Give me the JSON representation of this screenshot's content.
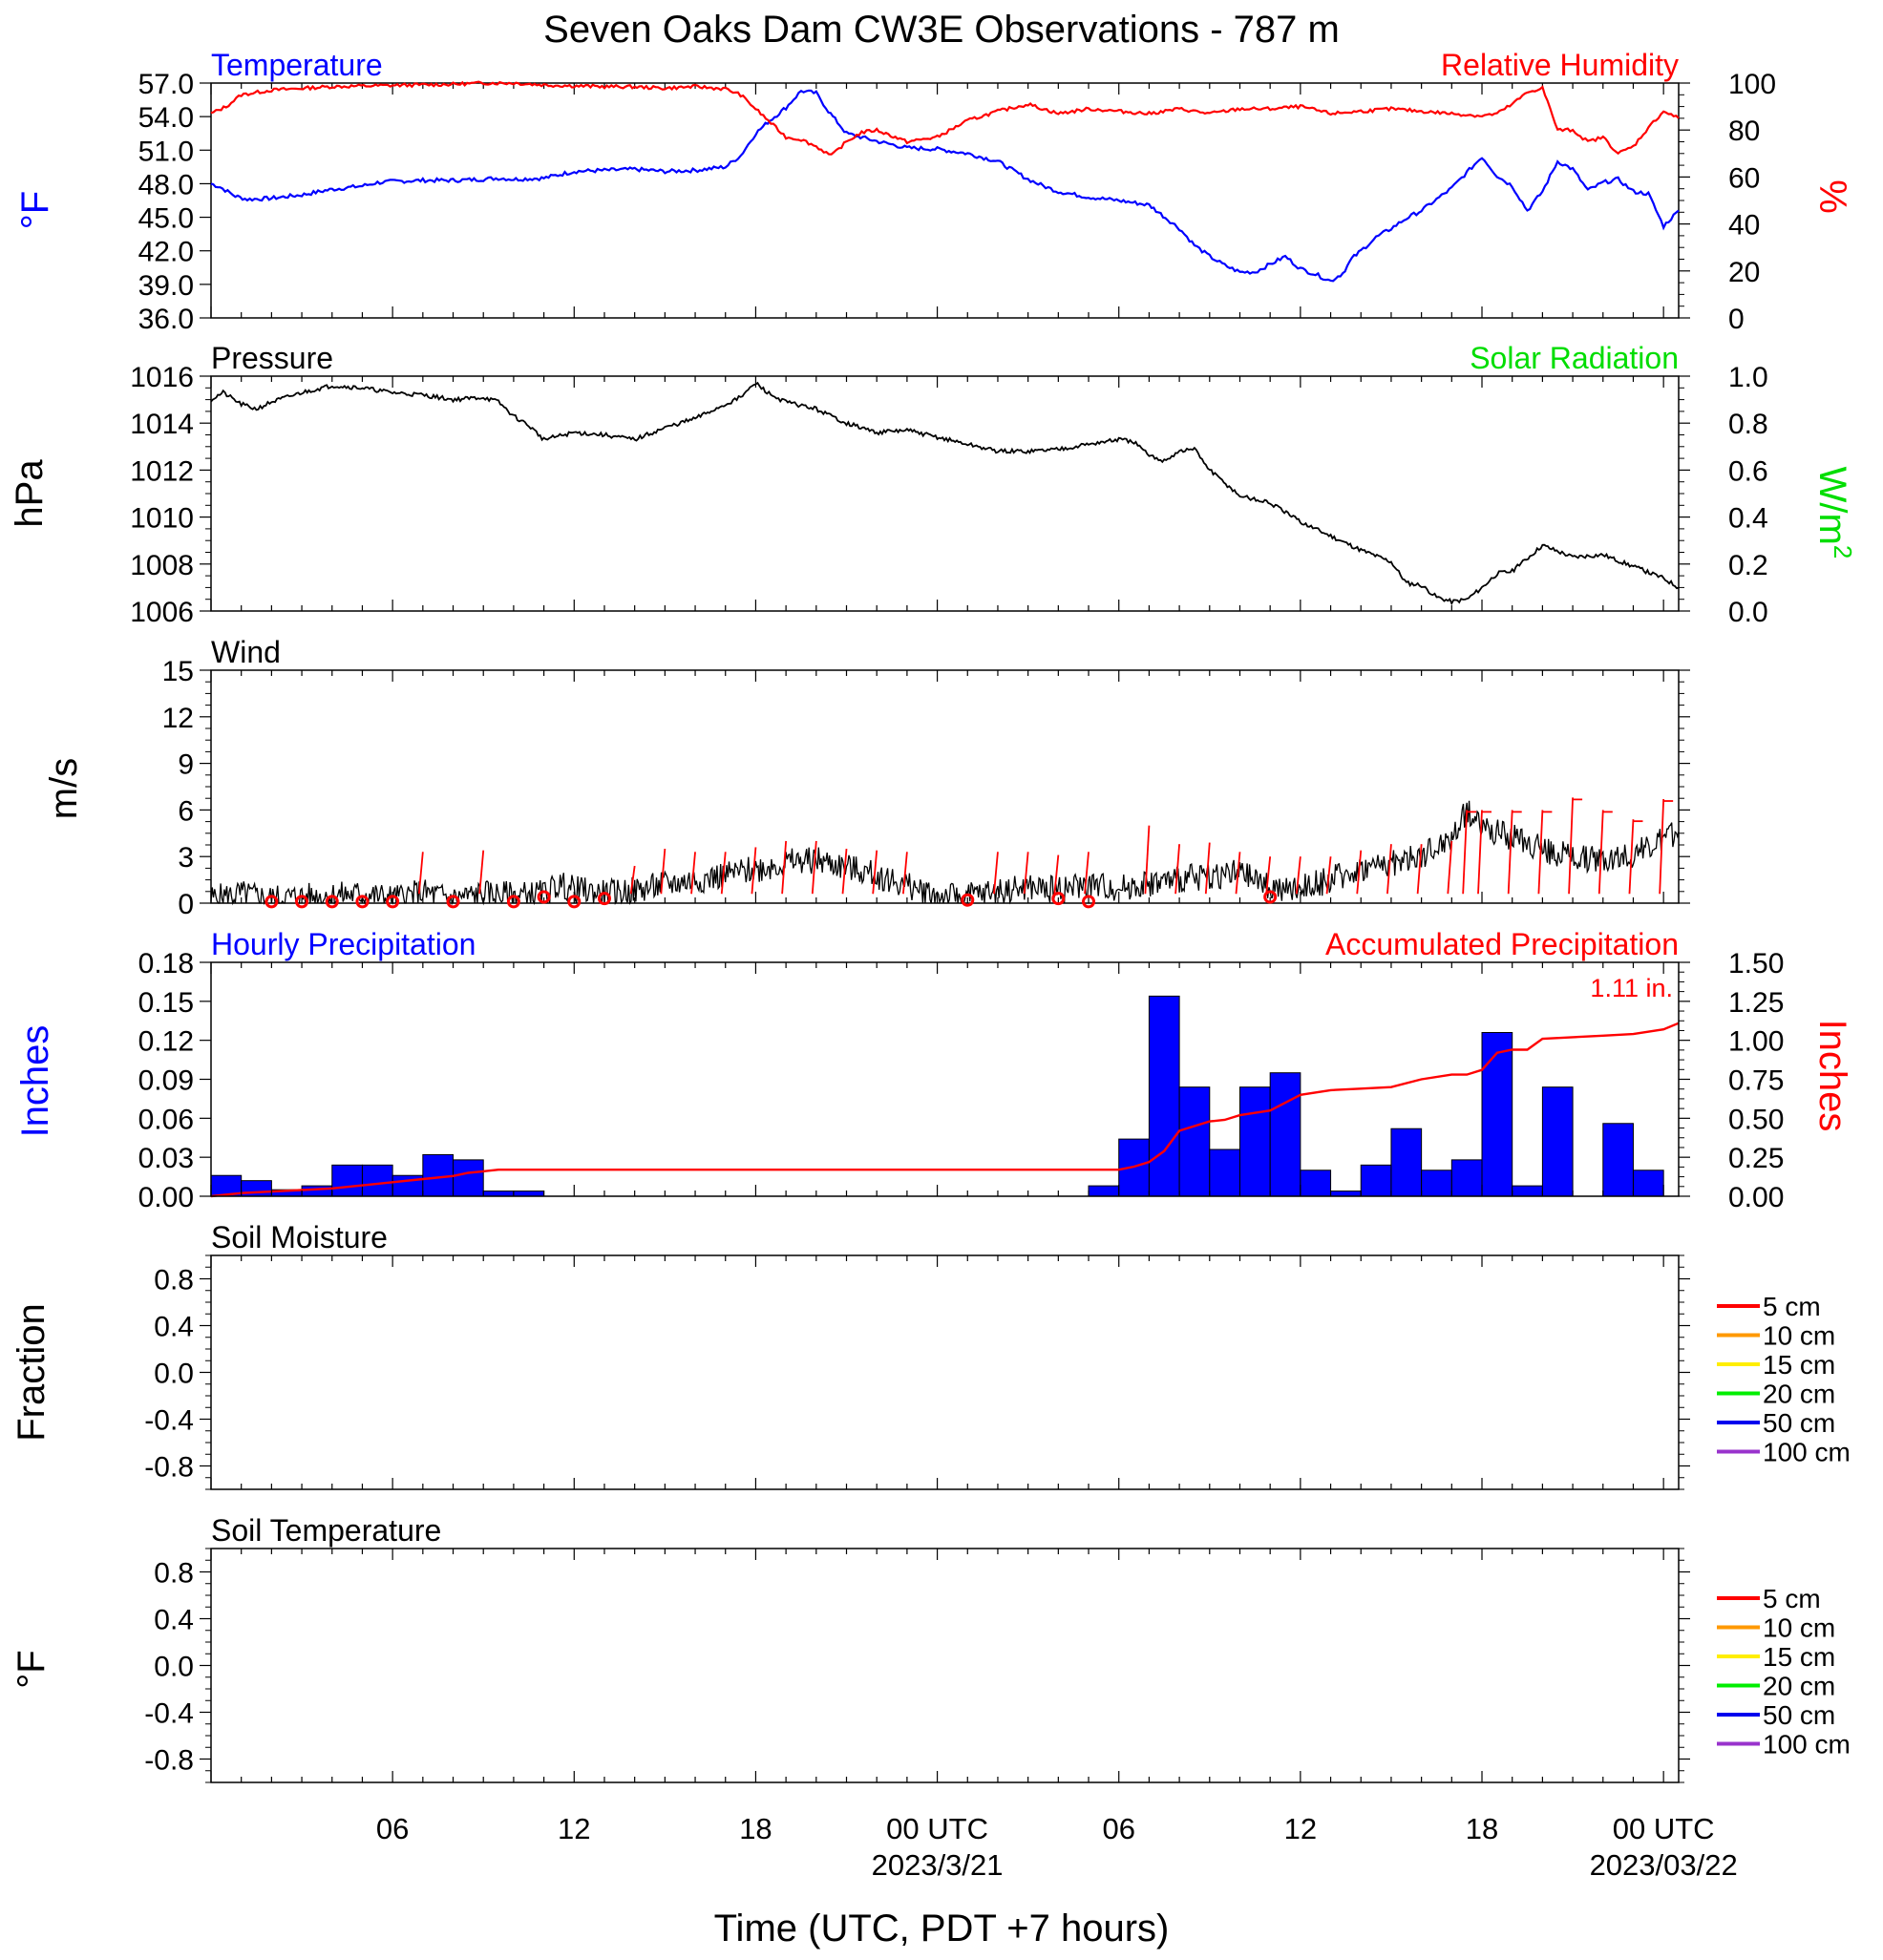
{
  "title": "Seven Oaks Dam CW3E Observations - 787 m",
  "xaxis": {
    "title": "Time (UTC, PDT +7 hours)",
    "ticks": [
      {
        "hour": 6,
        "label": "06"
      },
      {
        "hour": 12,
        "label": "12"
      },
      {
        "hour": 18,
        "label": "18"
      },
      {
        "hour": 24,
        "label": "00 UTC",
        "date": "2023/3/21"
      },
      {
        "hour": 30,
        "label": "06"
      },
      {
        "hour": 36,
        "label": "12"
      },
      {
        "hour": 42,
        "label": "18"
      },
      {
        "hour": 48,
        "label": "00 UTC",
        "date": "2023/03/22"
      }
    ]
  },
  "colors": {
    "temperature": "#0000ff",
    "humidity": "#ff0000",
    "pressure": "#000000",
    "solar": "#00dd00",
    "wind": "#000000",
    "gust": "#ff0000",
    "hourly": "#0000ff",
    "accum": "#ff0000",
    "soil": [
      "#ff0000",
      "#ff9900",
      "#ffee00",
      "#00ee00",
      "#0000ee",
      "#9933cc"
    ]
  },
  "chart_data": [
    {
      "type": "line",
      "panel": "temperature-humidity",
      "left_title": "Temperature",
      "right_title": "Relative Humidity",
      "left_unit": "°F",
      "right_unit": "%",
      "left_ticks": [
        "57.0",
        "54.0",
        "51.0",
        "48.0",
        "45.0",
        "42.0",
        "39.0",
        "36.0"
      ],
      "right_ticks": [
        "100",
        "80",
        "60",
        "40",
        "20",
        "0"
      ],
      "ylim": [
        36,
        57
      ],
      "y2lim": [
        0,
        100
      ],
      "series": [
        {
          "name": "Temperature",
          "axis": "left",
          "x": [
            0,
            0.3,
            0.8,
            1.2,
            2,
            3,
            4,
            5,
            5.5,
            6,
            7,
            8,
            9,
            9.5,
            10,
            11,
            12,
            13,
            14,
            15,
            16,
            17,
            17.5,
            18,
            18.4,
            19,
            19.5,
            20,
            20.4,
            21,
            22,
            23,
            24,
            25,
            26,
            27,
            27.5,
            28,
            29,
            30,
            31,
            32,
            32.5,
            33,
            33.5,
            34,
            34.5,
            35,
            35.5,
            36,
            36.5,
            37,
            37.4,
            37.7,
            38,
            38.5,
            39,
            39.5,
            40,
            40.5,
            41,
            41.5,
            42,
            42.5,
            43,
            43.5,
            44,
            44.5,
            45,
            45.5,
            46,
            46.5,
            47,
            47.5,
            48,
            48.5
          ],
          "values": [
            48,
            47.7,
            46.9,
            46.6,
            46.7,
            47,
            47.5,
            47.8,
            48.1,
            48.2,
            48.3,
            48.3,
            48.4,
            48.5,
            48.4,
            48.5,
            49.1,
            49.2,
            49.3,
            49.1,
            49.2,
            49.5,
            50.5,
            52.5,
            53.5,
            54.8,
            56.3,
            56.1,
            54.5,
            52.5,
            51.8,
            51.2,
            51.1,
            50.7,
            50,
            48.4,
            47.8,
            47.3,
            46.8,
            46.5,
            46.1,
            44,
            42.5,
            41.5,
            40.7,
            40.1,
            40.1,
            40.8,
            41.5,
            40.4,
            39.9,
            39.3,
            40,
            41.3,
            42,
            43.2,
            44,
            44.9,
            45.6,
            46.6,
            47.6,
            49,
            50.4,
            48.7,
            47.8,
            45.6,
            47.3,
            50,
            49.3,
            47.4,
            48.1,
            48.4,
            47.3,
            47.1,
            44.2,
            45.6
          ]
        },
        {
          "name": "Relative Humidity",
          "axis": "right",
          "x": [
            0,
            0.5,
            1,
            2,
            4,
            6,
            8,
            9,
            10,
            11,
            12,
            13,
            14,
            15,
            16,
            17,
            17.5,
            18,
            18.5,
            19,
            19.5,
            20,
            20.5,
            21,
            21.5,
            22,
            23,
            24,
            25,
            26,
            27,
            28,
            29,
            30,
            31,
            32,
            33,
            34,
            35,
            36,
            37,
            38,
            39,
            40,
            41,
            42,
            42.5,
            43,
            43.5,
            44,
            44.5,
            45,
            45.5,
            46,
            46.5,
            47,
            47.5,
            48,
            48.5
          ],
          "values": [
            87,
            90,
            95,
            97,
            98.5,
            99,
            99.5,
            100,
            100,
            99.2,
            98.8,
            98.5,
            98.4,
            97.8,
            98.5,
            97.5,
            95,
            89,
            83,
            77,
            76,
            73,
            69,
            75,
            79,
            80,
            75,
            77,
            84,
            88,
            91,
            87,
            89,
            88,
            87,
            89,
            87,
            89,
            89,
            90,
            87,
            88,
            89,
            88,
            87,
            86,
            87,
            91,
            96,
            98,
            80,
            80,
            75,
            77,
            70,
            73,
            81,
            88,
            85
          ]
        }
      ]
    },
    {
      "type": "line",
      "panel": "pressure-solar",
      "left_title": "Pressure",
      "right_title": "Solar Radiation",
      "left_unit": "hPa",
      "right_unit": "W/m",
      "right_unit_sup": "2",
      "left_ticks": [
        "1016",
        "1014",
        "1012",
        "1010",
        "1008",
        "1006"
      ],
      "right_ticks": [
        "1.0",
        "0.8",
        "0.6",
        "0.4",
        "0.2",
        "0.0"
      ],
      "ylim": [
        1006,
        1016
      ],
      "y2lim": [
        0,
        1
      ],
      "series": [
        {
          "name": "Pressure",
          "x": [
            0,
            0.4,
            1,
            1.5,
            2,
            3,
            4,
            5,
            6,
            7,
            8,
            9,
            9.5,
            10,
            10.5,
            11,
            12,
            13,
            14,
            15,
            16,
            17,
            17.5,
            18,
            18.5,
            19,
            20,
            21,
            22,
            23,
            24,
            25,
            26,
            27,
            28,
            29,
            30,
            30.5,
            31,
            31.5,
            32,
            32.5,
            33,
            34,
            35,
            36,
            37,
            38,
            39,
            39.5,
            40,
            40.5,
            41,
            41.5,
            42,
            42.5,
            43,
            44,
            45,
            46,
            47,
            48,
            48.5
          ],
          "values": [
            1015,
            1015.3,
            1014.8,
            1014.6,
            1014.9,
            1015.3,
            1015.6,
            1015.5,
            1015.3,
            1015.2,
            1015.0,
            1015.1,
            1014.9,
            1014.3,
            1013.9,
            1013.3,
            1013.6,
            1013.5,
            1013.3,
            1013.8,
            1014.2,
            1014.8,
            1015.1,
            1015.7,
            1015.2,
            1014.9,
            1014.6,
            1014.0,
            1013.6,
            1013.7,
            1013.4,
            1013.1,
            1012.8,
            1012.8,
            1012.9,
            1013.1,
            1013.3,
            1013.2,
            1012.6,
            1012.4,
            1012.8,
            1012.9,
            1012.0,
            1010.9,
            1010.6,
            1009.8,
            1009.2,
            1008.6,
            1008.1,
            1007.2,
            1007.1,
            1006.6,
            1006.4,
            1006.5,
            1007.0,
            1007.6,
            1007.7,
            1008.8,
            1008.3,
            1008.4,
            1007.9,
            1007.4,
            1007.0
          ]
        }
      ]
    },
    {
      "type": "line",
      "panel": "wind",
      "left_title": "Wind",
      "left_unit": "m/s",
      "left_ticks": [
        "15",
        "12",
        "9",
        "6",
        "3",
        "0"
      ],
      "ylim": [
        0,
        15
      ],
      "series": [
        {
          "name": "Wind",
          "x": [
            0,
            1,
            2,
            3,
            4,
            5,
            6,
            7,
            8,
            9,
            10,
            11,
            11.5,
            12,
            13,
            14,
            15,
            16,
            17,
            18,
            19,
            20,
            21,
            22,
            23,
            24,
            25,
            26,
            27,
            28,
            29,
            30,
            31,
            32,
            33,
            34,
            35,
            35.5,
            36,
            37,
            38,
            39,
            40,
            41,
            41.5,
            42,
            43,
            44,
            45,
            46,
            47,
            48,
            48.5
          ],
          "values": [
            0.3,
            0.6,
            0.3,
            0.4,
            0.5,
            0.6,
            0.3,
            0.7,
            0.3,
            0.6,
            0.5,
            0.6,
            1.2,
            0.9,
            0.6,
            0.8,
            1.2,
            1.5,
            1.8,
            2.2,
            2.6,
            2.8,
            2.3,
            1.8,
            1.1,
            0.5,
            0.4,
            0.8,
            1.0,
            0.9,
            1.2,
            1.0,
            1.3,
            1.5,
            1.8,
            1.9,
            1.1,
            0.7,
            1.0,
            1.5,
            2.2,
            2.6,
            3.0,
            4.2,
            6.0,
            5.0,
            4.2,
            3.5,
            3.0,
            2.8,
            3.2,
            4.0,
            4.6
          ]
        },
        {
          "name": "Gust markers",
          "x": [
            7,
            9,
            14,
            15,
            16,
            17,
            18,
            19,
            20,
            21,
            22,
            23,
            26,
            27,
            28,
            29,
            31,
            32,
            33,
            34,
            35,
            36,
            37,
            38,
            39,
            40,
            41,
            41.5,
            42,
            43,
            44,
            45,
            46,
            47,
            48
          ],
          "values": [
            3.3,
            3.4,
            2.4,
            3.5,
            3.3,
            3.3,
            3.6,
            4.0,
            4.0,
            3.5,
            3.4,
            3.3,
            3.3,
            3.3,
            3.1,
            3.3,
            5.0,
            3.8,
            3.9,
            3.3,
            3.0,
            3.0,
            3.0,
            3.4,
            3.8,
            3.8,
            4.0,
            6.0,
            6.0,
            6.0,
            6.0,
            6.8,
            6.0,
            5.4,
            6.7
          ]
        },
        {
          "name": "Calm markers",
          "x": [
            2,
            3,
            4,
            5,
            6,
            8,
            10,
            11,
            12,
            13,
            25,
            28,
            29,
            35
          ],
          "values": [
            0.1,
            0.1,
            0.1,
            0.1,
            0.1,
            0.1,
            0.1,
            0.4,
            0.1,
            0.3,
            0.2,
            0.3,
            0.1,
            0.4
          ]
        }
      ]
    },
    {
      "type": "bar",
      "panel": "precipitation",
      "left_title": "Hourly Precipitation",
      "right_title": "Accumulated Precipitation",
      "total_label": "1.11 in.",
      "left_unit": "Inches",
      "right_unit": "Inches",
      "left_ticks": [
        "0.18",
        "0.15",
        "0.12",
        "0.09",
        "0.06",
        "0.03",
        "0.00"
      ],
      "right_ticks": [
        "1.50",
        "1.25",
        "1.00",
        "0.75",
        "0.50",
        "0.25",
        "0.00"
      ],
      "ylim": [
        0,
        0.18
      ],
      "y2lim": [
        0,
        1.5
      ],
      "bar_start_hours": [
        0,
        1,
        2,
        3,
        4,
        5,
        6,
        7,
        8,
        9,
        10,
        11,
        29,
        30,
        31,
        32,
        33,
        34,
        35,
        36,
        37,
        38,
        39,
        40,
        41,
        42,
        43,
        44,
        45,
        46,
        47
      ],
      "bar_values": [
        0.016,
        0.012,
        0.005,
        0.008,
        0.024,
        0.024,
        0.016,
        0.032,
        0.028,
        0.004,
        0.004,
        0.0,
        0.008,
        0.044,
        0.154,
        0.084,
        0.036,
        0.084,
        0.095,
        0.02,
        0.004,
        0.024,
        0.052,
        0.02,
        0.028,
        0.126,
        0.008,
        0.084,
        0.0,
        0.056,
        0.02
      ],
      "series": [
        {
          "name": "Accumulated Precipitation",
          "x": [
            0,
            1,
            2,
            3,
            4,
            5,
            6,
            7,
            8,
            8.5,
            9,
            9.5,
            11,
            29,
            30,
            30.5,
            31,
            31.5,
            32,
            33,
            33.5,
            34,
            35,
            36,
            37,
            38,
            39,
            40,
            41,
            41.5,
            42,
            42.5,
            43,
            43.5,
            44,
            45,
            46,
            47,
            48,
            48.5
          ],
          "values": [
            0.0,
            0.02,
            0.03,
            0.04,
            0.05,
            0.07,
            0.09,
            0.11,
            0.13,
            0.15,
            0.16,
            0.17,
            0.17,
            0.17,
            0.17,
            0.19,
            0.22,
            0.29,
            0.42,
            0.48,
            0.49,
            0.52,
            0.55,
            0.65,
            0.68,
            0.69,
            0.7,
            0.75,
            0.78,
            0.78,
            0.81,
            0.92,
            0.94,
            0.94,
            1.01,
            1.02,
            1.03,
            1.04,
            1.07,
            1.11
          ]
        }
      ]
    },
    {
      "type": "line",
      "panel": "soil-moisture",
      "left_title": "Soil Moisture",
      "left_unit": "Fraction",
      "left_ticks": [
        "0.8",
        "0.4",
        "0.0",
        "-0.4",
        "-0.8"
      ],
      "ylim": [
        -1,
        1
      ],
      "legend": [
        "5 cm",
        "10 cm",
        "15 cm",
        "20 cm",
        "50 cm",
        "100 cm"
      ],
      "series": []
    },
    {
      "type": "line",
      "panel": "soil-temperature",
      "left_title": "Soil Temperature",
      "left_unit": "°F",
      "left_ticks": [
        "0.8",
        "0.4",
        "0.0",
        "-0.4",
        "-0.8"
      ],
      "ylim": [
        -1,
        1
      ],
      "legend": [
        "5 cm",
        "10 cm",
        "15 cm",
        "20 cm",
        "50 cm",
        "100 cm"
      ],
      "series": []
    }
  ]
}
